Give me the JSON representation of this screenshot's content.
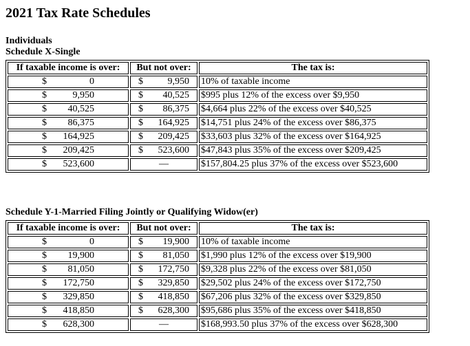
{
  "page_title": "2021 Tax Rate Schedules",
  "group_label": "Individuals",
  "currency_symbol": "$",
  "schedules": [
    {
      "title": "Schedule X-Single",
      "headers": {
        "col1": "If taxable income is over:",
        "col2": "But not over:",
        "col3": "The tax is:"
      },
      "rows": [
        {
          "over": "0",
          "but_not_over": "9,950",
          "tax": "10% of taxable income"
        },
        {
          "over": "9,950",
          "but_not_over": "40,525",
          "tax": "$995 plus 12% of the excess over $9,950"
        },
        {
          "over": "40,525",
          "but_not_over": "86,375",
          "tax": "$4,664 plus 22% of the excess over $40,525"
        },
        {
          "over": "86,375",
          "but_not_over": "164,925",
          "tax": "$14,751 plus 24% of the excess over $86,375"
        },
        {
          "over": "164,925",
          "but_not_over": "209,425",
          "tax": "$33,603 plus 32% of the excess over $164,925"
        },
        {
          "over": "209,425",
          "but_not_over": "523,600",
          "tax": "$47,843 plus 35% of the excess over $209,425"
        },
        {
          "over": "523,600",
          "but_not_over": "—",
          "tax": "$157,804.25 plus 37% of the excess over $523,600"
        }
      ]
    },
    {
      "title": "Schedule Y-1-Married Filing Jointly or Qualifying Widow(er)",
      "headers": {
        "col1": "If taxable income is over:",
        "col2": "But not over:",
        "col3": "The tax is:"
      },
      "rows": [
        {
          "over": "0",
          "but_not_over": "19,900",
          "tax": "10% of taxable income"
        },
        {
          "over": "19,900",
          "but_not_over": "81,050",
          "tax": "$1,990 plus 12% of the excess over $19,900"
        },
        {
          "over": "81,050",
          "but_not_over": "172,750",
          "tax": "$9,328 plus 22% of the excess over $81,050"
        },
        {
          "over": "172,750",
          "but_not_over": "329,850",
          "tax": "$29,502 plus 24% of the excess over $172,750"
        },
        {
          "over": "329,850",
          "but_not_over": "418,850",
          "tax": "$67,206 plus 32% of the excess over $329,850"
        },
        {
          "over": "418,850",
          "but_not_over": "628,300",
          "tax": "$95,686 plus 35% of the excess over $418,850"
        },
        {
          "over": "628,300",
          "but_not_over": "—",
          "tax": "$168,993.50 plus 37% of the excess over $628,300"
        }
      ]
    }
  ]
}
